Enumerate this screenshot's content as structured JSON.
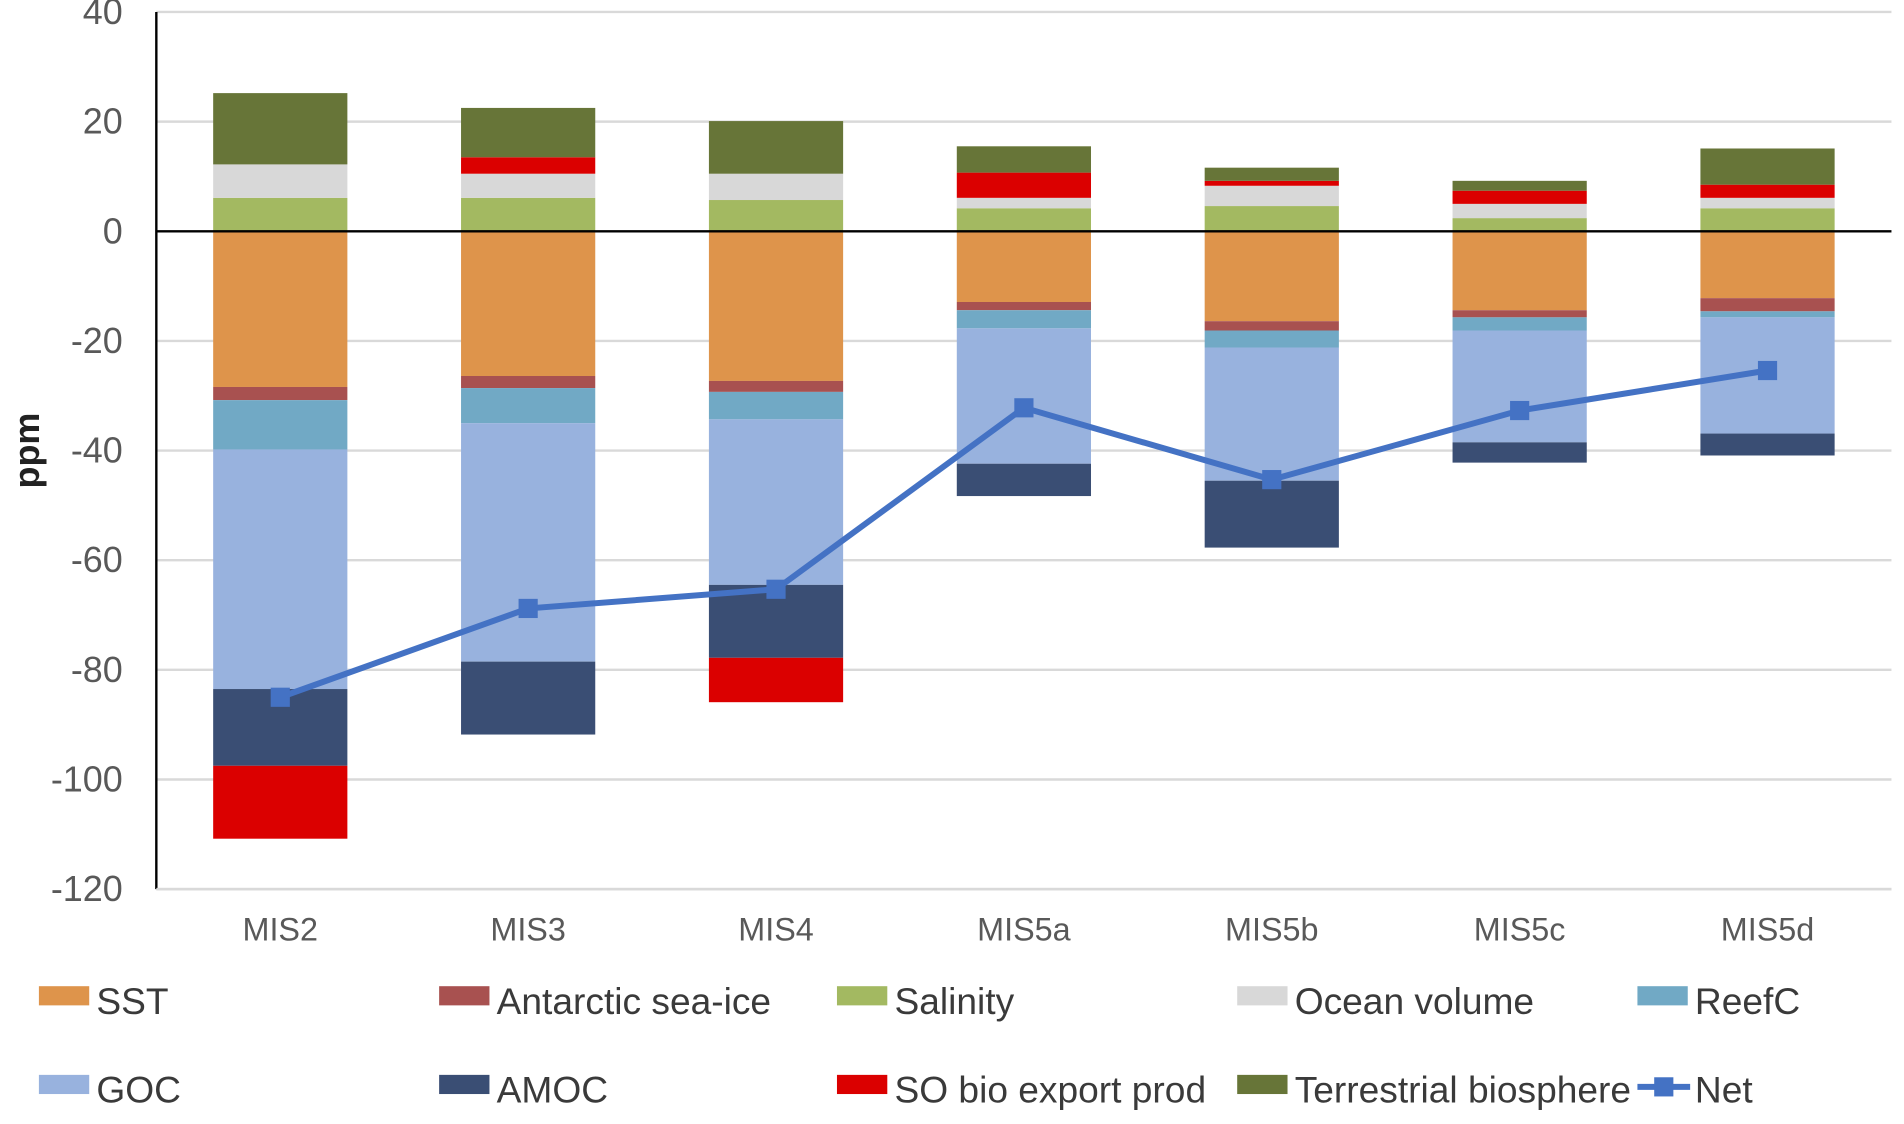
{
  "chart_data": {
    "type": "bar",
    "stacked": true,
    "title": "",
    "xlabel": "",
    "ylabel": "ppm",
    "ylim": [
      -120,
      40
    ],
    "yticks": [
      40,
      20,
      0,
      -20,
      -40,
      -60,
      -80,
      -100,
      -120
    ],
    "grid": true,
    "legend_position": "bottom",
    "categories": [
      "MIS2",
      "MIS3",
      "MIS4",
      "MIS5a",
      "MIS5b",
      "MIS5c",
      "MIS5d"
    ],
    "series": [
      {
        "name": "SST",
        "color": "#DE944B",
        "values": [
          -28.4,
          -26.4,
          -27.3,
          -12.9,
          -16.4,
          -14.4,
          -12.2
        ]
      },
      {
        "name": "Antarctic sea-ice",
        "color": "#A85150",
        "values": [
          -2.4,
          -2.2,
          -2.0,
          -1.5,
          -1.7,
          -1.3,
          -2.4
        ]
      },
      {
        "name": "Salinity",
        "color": "#A3B961",
        "values": [
          6.1,
          6.1,
          5.7,
          4.2,
          4.6,
          2.4,
          4.2
        ]
      },
      {
        "name": "Ocean volume",
        "color": "#D8D8D8",
        "values": [
          6.1,
          4.4,
          4.8,
          1.9,
          3.7,
          2.6,
          1.9
        ]
      },
      {
        "name": "ReefC",
        "color": "#71A9C5",
        "values": [
          -9.0,
          -6.4,
          -5.0,
          -3.3,
          -3.1,
          -2.4,
          -1.1
        ]
      },
      {
        "name": "GOC",
        "color": "#98B2DE",
        "values": [
          -43.7,
          -43.5,
          -30.2,
          -24.7,
          -24.3,
          -20.4,
          -21.2
        ]
      },
      {
        "name": "AMOC",
        "color": "#3A4E74",
        "values": [
          -14.0,
          -13.3,
          -13.3,
          -5.9,
          -12.2,
          -3.7,
          -4.0
        ]
      },
      {
        "name": "SO bio export prod",
        "color": "#DB0000",
        "values": [
          -13.3,
          3.0,
          -8.1,
          4.6,
          0.9,
          2.4,
          2.4
        ]
      },
      {
        "name": "Terrestrial biosphere",
        "color": "#677538",
        "values": [
          13.0,
          9.0,
          9.6,
          4.8,
          2.4,
          1.8,
          6.6
        ]
      }
    ],
    "line_series": {
      "name": "Net",
      "color": "#4472C4",
      "values": [
        -85.0,
        -68.8,
        -65.3,
        -32.2,
        -45.3,
        -32.7,
        -25.4
      ]
    },
    "legend": [
      "SST",
      "Antarctic sea-ice",
      "Salinity",
      "Ocean volume",
      "ReefC",
      "GOC",
      "AMOC",
      "SO bio export prod",
      "Terrestrial biosphere",
      "Net"
    ]
  }
}
